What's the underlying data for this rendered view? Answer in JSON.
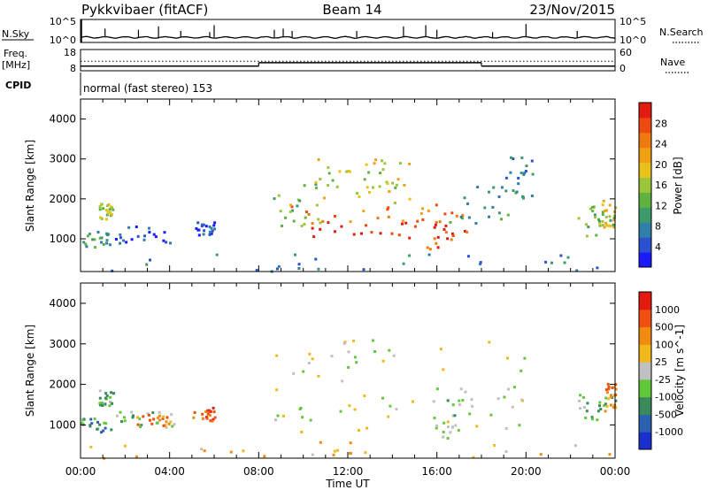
{
  "header": {
    "station": "Pykkvibaer (fitACF)",
    "beam": "Beam 14",
    "date": "23/Nov/2015"
  },
  "noise_panel": {
    "left_label": "N.Sky",
    "right_label": "N.Search",
    "left_ticks": [
      "10^5",
      "10^0"
    ],
    "right_ticks": [
      "10^5",
      "10^0"
    ],
    "spikes": [
      {
        "t": 1.1,
        "v": 0.6
      },
      {
        "t": 2.6,
        "v": 0.55
      },
      {
        "t": 3.5,
        "v": 0.7
      },
      {
        "t": 4.5,
        "v": 0.5
      },
      {
        "t": 5.8,
        "v": 0.45
      },
      {
        "t": 6.0,
        "v": 0.75
      },
      {
        "t": 8.7,
        "v": 0.55
      },
      {
        "t": 9.1,
        "v": 0.6
      },
      {
        "t": 9.5,
        "v": 0.5
      },
      {
        "t": 12.4,
        "v": 0.5
      },
      {
        "t": 14.5,
        "v": 0.7
      },
      {
        "t": 15.5,
        "v": 0.75
      },
      {
        "t": 16.0,
        "v": 0.55
      },
      {
        "t": 18.5,
        "v": 0.45
      },
      {
        "t": 20.0,
        "v": 0.8
      },
      {
        "t": 22.3,
        "v": 0.5
      }
    ]
  },
  "freq_panel": {
    "left_label_top": "Freq.",
    "left_label_bottom": "[MHz]",
    "right_label": "Nave",
    "left_ticks": [
      "18",
      "8"
    ],
    "right_ticks": [
      "60",
      "0"
    ],
    "freq_steps": [
      {
        "t0": 0,
        "t1": 8.0,
        "level": 0.22
      },
      {
        "t0": 8.0,
        "t1": 18.0,
        "level": 0.38
      },
      {
        "t0": 18.0,
        "t1": 24.0,
        "level": 0.22
      }
    ]
  },
  "cpid_panel": {
    "label": "CPID",
    "program": "normal (fast stereo) 153"
  },
  "chart_data": [
    {
      "type": "heatmap",
      "name": "power",
      "ylabel": "Slant Range [km]",
      "xlabel": "Time UT",
      "xlim": [
        0,
        24
      ],
      "ylim": [
        180,
        4500
      ],
      "x_ticks": [
        "00:00",
        "04:00",
        "08:00",
        "12:00",
        "16:00",
        "20:00",
        "00:00"
      ],
      "y_ticks": [
        1000,
        2000,
        3000,
        4000
      ],
      "colorbar": {
        "label": "Power [dB]",
        "ticks": [
          "28",
          "24",
          "20",
          "16",
          "12",
          "8",
          "4"
        ],
        "colors": [
          "#1a1aff",
          "#2a52d0",
          "#2f7fa8",
          "#3d9a6a",
          "#5fb240",
          "#9cc63a",
          "#e8c21a",
          "#f0a015",
          "#f07a10",
          "#ee4a10",
          "#e21a10"
        ]
      },
      "regions": [
        {
          "t0": 0.0,
          "t1": 1.4,
          "r0": 800,
          "r1": 1250,
          "level": 3
        },
        {
          "t0": 0.8,
          "t1": 1.5,
          "r0": 1500,
          "r1": 1900,
          "level": 5
        },
        {
          "t0": 1.5,
          "t1": 4.2,
          "r0": 900,
          "r1": 1350,
          "level": 1
        },
        {
          "t0": 5.0,
          "t1": 6.0,
          "r0": 1100,
          "r1": 1450,
          "level": 1
        },
        {
          "t0": 8.6,
          "t1": 11.0,
          "r0": 1350,
          "r1": 2500,
          "level": 4
        },
        {
          "t0": 9.3,
          "t1": 16.0,
          "r0": 1300,
          "r1": 1900,
          "level": 8
        },
        {
          "t0": 10.0,
          "t1": 16.5,
          "r0": 950,
          "r1": 1450,
          "level": 10
        },
        {
          "t0": 10.5,
          "t1": 15.5,
          "r0": 1900,
          "r1": 3050,
          "level": 6
        },
        {
          "t0": 11.0,
          "t1": 14.5,
          "r0": 2300,
          "r1": 3000,
          "level": 5
        },
        {
          "t0": 15.5,
          "t1": 17.5,
          "r0": 750,
          "r1": 1700,
          "level": 9
        },
        {
          "t0": 16.5,
          "t1": 19.5,
          "r0": 1400,
          "r1": 2400,
          "level": 3
        },
        {
          "t0": 19.0,
          "t1": 20.3,
          "r0": 2000,
          "r1": 3100,
          "level": 2
        },
        {
          "t0": 22.3,
          "t1": 24.0,
          "r0": 1100,
          "r1": 1900,
          "level": 4
        },
        {
          "t0": 23.2,
          "t1": 24.0,
          "r0": 1300,
          "r1": 2000,
          "level": 6
        },
        {
          "t0": 0.0,
          "t1": 24.0,
          "r0": 200,
          "r1": 650,
          "level": 2
        }
      ]
    },
    {
      "type": "heatmap",
      "name": "velocity",
      "ylabel": "Slant Range [km]",
      "xlabel": "Time UT",
      "xlim": [
        0,
        24
      ],
      "ylim": [
        180,
        4500
      ],
      "x_ticks": [
        "00:00",
        "04:00",
        "08:00",
        "12:00",
        "16:00",
        "20:00",
        "00:00"
      ],
      "y_ticks": [
        1000,
        2000,
        3000,
        4000
      ],
      "colorbar": {
        "label": "Velocity [m s^-1]",
        "ticks": [
          "1000",
          "500",
          "100",
          "25",
          "-25",
          "-100",
          "-500",
          "-1000"
        ],
        "colors": [
          "#1a2fd0",
          "#2a62b0",
          "#3a8a5a",
          "#62c83a",
          "#c0c0c0",
          "#f0b81a",
          "#f08a10",
          "#f05010",
          "#e21a10"
        ]
      },
      "regions": [
        {
          "t0": 0.0,
          "t1": 1.4,
          "r0": 850,
          "r1": 1200,
          "level": 2
        },
        {
          "t0": 0.8,
          "t1": 1.5,
          "r0": 1500,
          "r1": 1900,
          "level": 3
        },
        {
          "t0": 1.5,
          "t1": 4.2,
          "r0": 950,
          "r1": 1350,
          "level": 3
        },
        {
          "t0": 2.5,
          "t1": 4.0,
          "r0": 1000,
          "r1": 1300,
          "level": 6
        },
        {
          "t0": 5.0,
          "t1": 6.0,
          "r0": 1100,
          "r1": 1450,
          "level": 7
        },
        {
          "t0": 8.6,
          "t1": 20.3,
          "r0": 850,
          "r1": 3150,
          "level": 4
        },
        {
          "t0": 15.8,
          "t1": 17.0,
          "r0": 700,
          "r1": 1700,
          "level": 3
        },
        {
          "t0": 22.3,
          "t1": 24.0,
          "r0": 1150,
          "r1": 1800,
          "level": 3
        },
        {
          "t0": 23.5,
          "t1": 24.0,
          "r0": 1300,
          "r1": 2100,
          "level": 6
        },
        {
          "t0": 0.0,
          "t1": 24.0,
          "r0": 200,
          "r1": 600,
          "level": 5
        }
      ]
    }
  ]
}
